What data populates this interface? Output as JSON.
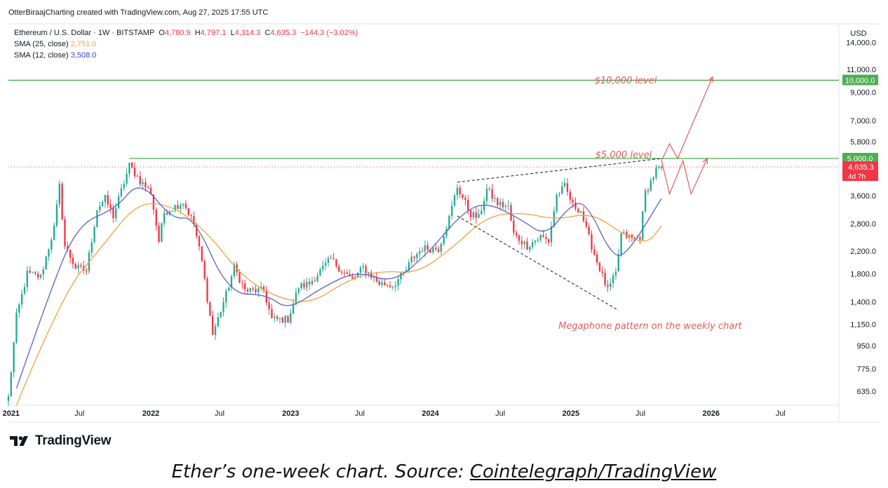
{
  "credit": "OtterBiraajCharting created with TradingView.com, Aug 27, 2025 17:55 UTC",
  "legend": {
    "symbol": "Ethereum / U.S. Dollar · 1W · BITSTAMP",
    "o_label": "O",
    "o_value": "4,780.9",
    "h_label": "H",
    "h_value": "4,797.1",
    "l_label": "L",
    "l_value": "4,314.3",
    "c_label": "C",
    "c_value": "4,635.3",
    "change": "−144.3 (−3.02%)",
    "sma25_label": "SMA (25, close)",
    "sma25_value": "2,751.0",
    "sma12_label": "SMA (12, close)",
    "sma12_value": "3,508.0"
  },
  "colors": {
    "up": "#22ab94",
    "down": "#f23645",
    "sma25": "#f2a23c",
    "sma12": "#5b5fc7",
    "level": "#4caf50",
    "annotation": "#e05a5a",
    "price_line": "#f23645"
  },
  "annotations": {
    "level_10000": "$10,000 level",
    "level_5000": "$5,000 level",
    "megaphone": "Megaphone pattern on the weekly chart"
  },
  "logo_text": "TradingView",
  "caption": {
    "prefix": "Ether’s one-week chart. Source: ",
    "source": "Cointelegraph/TradingView"
  },
  "chart_data": {
    "type": "candlestick",
    "currency": "USD",
    "scale": "log",
    "ylim": [
      560,
      16500
    ],
    "xlim": [
      "2020-12-28",
      "2026-11-30"
    ],
    "y_ticks": [
      "14,000.0",
      "11,000.0",
      "9,000.0",
      "7,000.0",
      "5,800.0",
      "3,600.0",
      "2,800.0",
      "2,200.0",
      "1,800.0",
      "1,400.0",
      "1,150.0",
      "950.0",
      "775.0",
      "635.0"
    ],
    "y_tick_values": [
      14000,
      11000,
      9000,
      7000,
      5800,
      3600,
      2800,
      2200,
      1800,
      1400,
      1150,
      950,
      775,
      635
    ],
    "x_ticks": [
      {
        "date": "2021-01-04",
        "label": "2021",
        "bold": true
      },
      {
        "date": "2021-07-01",
        "label": "Jul",
        "bold": false
      },
      {
        "date": "2022-01-03",
        "label": "2022",
        "bold": true
      },
      {
        "date": "2022-07-01",
        "label": "Jul",
        "bold": false
      },
      {
        "date": "2023-01-02",
        "label": "2023",
        "bold": true
      },
      {
        "date": "2023-07-01",
        "label": "Jul",
        "bold": false
      },
      {
        "date": "2024-01-01",
        "label": "2024",
        "bold": true
      },
      {
        "date": "2024-07-01",
        "label": "Jul",
        "bold": false
      },
      {
        "date": "2025-01-01",
        "label": "2025",
        "bold": true
      },
      {
        "date": "2025-07-01",
        "label": "Jul",
        "bold": false
      },
      {
        "date": "2026-01-01",
        "label": "2026",
        "bold": true
      },
      {
        "date": "2026-07-01",
        "label": "Jul",
        "bold": false
      }
    ],
    "price_anchors": [
      [
        "2020-12-28",
        600
      ],
      [
        "2021-01-18",
        1230
      ],
      [
        "2021-02-15",
        1800
      ],
      [
        "2021-03-22",
        1750
      ],
      [
        "2021-04-26",
        2700
      ],
      [
        "2021-05-10",
        3900
      ],
      [
        "2021-05-24",
        2300
      ],
      [
        "2021-06-21",
        1900
      ],
      [
        "2021-07-19",
        1850
      ],
      [
        "2021-08-16",
        3200
      ],
      [
        "2021-09-06",
        3500
      ],
      [
        "2021-09-27",
        3000
      ],
      [
        "2021-11-08",
        4700
      ],
      [
        "2021-12-06",
        4100
      ],
      [
        "2022-01-03",
        3700
      ],
      [
        "2022-01-24",
        2400
      ],
      [
        "2022-02-07",
        3100
      ],
      [
        "2022-03-28",
        3400
      ],
      [
        "2022-04-25",
        2800
      ],
      [
        "2022-05-16",
        2000
      ],
      [
        "2022-06-13",
        1050
      ],
      [
        "2022-07-18",
        1500
      ],
      [
        "2022-08-08",
        1900
      ],
      [
        "2022-09-05",
        1550
      ],
      [
        "2022-10-24",
        1550
      ],
      [
        "2022-11-14",
        1200
      ],
      [
        "2022-12-26",
        1200
      ],
      [
        "2023-01-23",
        1600
      ],
      [
        "2023-02-20",
        1650
      ],
      [
        "2023-04-17",
        2050
      ],
      [
        "2023-05-15",
        1850
      ],
      [
        "2023-06-12",
        1700
      ],
      [
        "2023-07-10",
        1900
      ],
      [
        "2023-08-21",
        1650
      ],
      [
        "2023-09-25",
        1620
      ],
      [
        "2023-10-30",
        1850
      ],
      [
        "2023-11-13",
        2050
      ],
      [
        "2023-12-11",
        2250
      ],
      [
        "2024-01-22",
        2250
      ],
      [
        "2024-02-19",
        2950
      ],
      [
        "2024-03-11",
        3900
      ],
      [
        "2024-04-15",
        3050
      ],
      [
        "2024-05-06",
        2950
      ],
      [
        "2024-05-27",
        3800
      ],
      [
        "2024-06-24",
        3350
      ],
      [
        "2024-07-22",
        3250
      ],
      [
        "2024-08-05",
        2550
      ],
      [
        "2024-09-09",
        2300
      ],
      [
        "2024-10-14",
        2500
      ],
      [
        "2024-11-04",
        2400
      ],
      [
        "2024-11-25",
        3600
      ],
      [
        "2024-12-16",
        3900
      ],
      [
        "2025-01-06",
        3300
      ],
      [
        "2025-01-27",
        3150
      ],
      [
        "2025-02-10",
        2650
      ],
      [
        "2025-03-10",
        2000
      ],
      [
        "2025-04-07",
        1550
      ],
      [
        "2025-04-28",
        1800
      ],
      [
        "2025-05-12",
        2550
      ],
      [
        "2025-06-16",
        2450
      ],
      [
        "2025-06-30",
        2500
      ],
      [
        "2025-07-14",
        3700
      ],
      [
        "2025-08-11",
        4500
      ],
      [
        "2025-08-25",
        4635
      ]
    ],
    "sma25": [
      [
        "2021-01-18",
        560
      ],
      [
        "2021-05-17",
        1500
      ],
      [
        "2021-08-30",
        2300
      ],
      [
        "2021-11-29",
        3400
      ],
      [
        "2022-02-28",
        3300
      ],
      [
        "2022-05-30",
        2600
      ],
      [
        "2022-08-29",
        1750
      ],
      [
        "2022-11-28",
        1450
      ],
      [
        "2023-02-27",
        1380
      ],
      [
        "2023-05-29",
        1700
      ],
      [
        "2023-08-28",
        1850
      ],
      [
        "2023-11-27",
        1800
      ],
      [
        "2024-02-26",
        2250
      ],
      [
        "2024-05-27",
        3000
      ],
      [
        "2024-08-26",
        3100
      ],
      [
        "2024-11-25",
        2900
      ],
      [
        "2025-02-24",
        3100
      ],
      [
        "2025-05-26",
        2500
      ],
      [
        "2025-07-21",
        2350
      ],
      [
        "2025-08-25",
        2751
      ]
    ],
    "sma12": [
      [
        "2021-01-18",
        650
      ],
      [
        "2021-04-19",
        1600
      ],
      [
        "2021-06-28",
        2800
      ],
      [
        "2021-10-04",
        3200
      ],
      [
        "2021-12-06",
        4150
      ],
      [
        "2022-02-28",
        2900
      ],
      [
        "2022-04-25",
        3000
      ],
      [
        "2022-07-25",
        1500
      ],
      [
        "2022-10-31",
        1500
      ],
      [
        "2022-12-26",
        1300
      ],
      [
        "2023-03-27",
        1600
      ],
      [
        "2023-06-26",
        1850
      ],
      [
        "2023-09-25",
        1650
      ],
      [
        "2023-12-25",
        2150
      ],
      [
        "2024-03-25",
        3100
      ],
      [
        "2024-05-27",
        3400
      ],
      [
        "2024-08-26",
        2900
      ],
      [
        "2024-10-28",
        2500
      ],
      [
        "2024-12-30",
        3300
      ],
      [
        "2025-02-10",
        3400
      ],
      [
        "2025-04-21",
        2050
      ],
      [
        "2025-06-02",
        2200
      ],
      [
        "2025-08-25",
        3508
      ]
    ],
    "levels": [
      {
        "value": 10000,
        "label": "10,000.0"
      },
      {
        "value": 5000,
        "label": "5,000.0"
      }
    ],
    "last_price": {
      "value": 4635.3,
      "label": "4,635.3",
      "countdown": "4d 7h"
    },
    "megaphone": {
      "upper": [
        [
          "2024-03-11",
          4050
        ],
        [
          "2025-08-25",
          5000
        ]
      ],
      "lower": [
        [
          "2024-03-11",
          3000
        ],
        [
          "2025-05-05",
          1300
        ]
      ]
    },
    "projections": [
      [
        [
          "2025-08-25",
          4900
        ],
        [
          "2025-09-15",
          5700
        ],
        [
          "2025-10-06",
          5000
        ],
        [
          "2026-01-05",
          10300
        ]
      ],
      [
        [
          "2025-08-25",
          4900
        ],
        [
          "2025-09-15",
          3650
        ],
        [
          "2025-10-20",
          4900
        ],
        [
          "2025-11-10",
          3650
        ],
        [
          "2025-12-22",
          5000
        ]
      ]
    ]
  }
}
